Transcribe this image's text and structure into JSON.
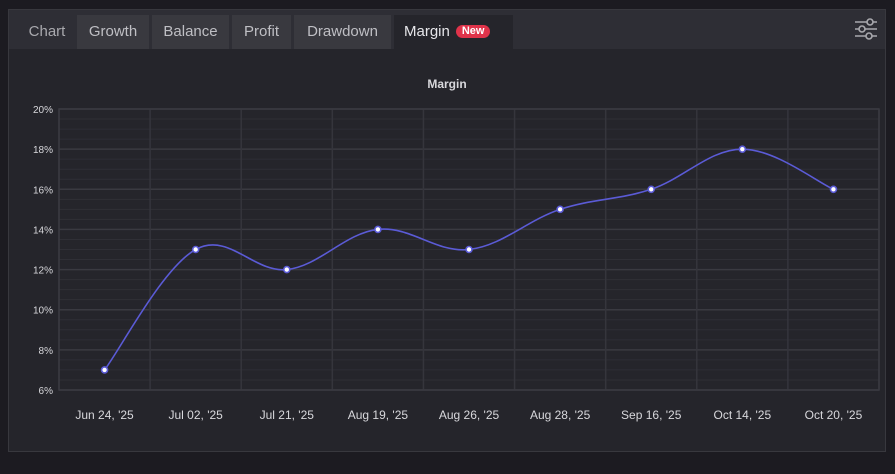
{
  "tabs": [
    {
      "label": "Chart"
    },
    {
      "label": "Growth"
    },
    {
      "label": "Balance"
    },
    {
      "label": "Profit"
    },
    {
      "label": "Drawdown"
    },
    {
      "label": "Margin",
      "badge": "New",
      "active": true
    }
  ],
  "toolbar": {
    "settings_icon": "sliders-icon"
  },
  "colors": {
    "line": "#5b5bd6",
    "badge": "#e0334a",
    "background": "#25252b",
    "grid": "#38383e"
  },
  "chart_data": {
    "type": "line",
    "title": "Margin",
    "xlabel": "",
    "ylabel": "",
    "categories": [
      "Jun 24, '25",
      "Jul 02, '25",
      "Jul 21, '25",
      "Aug 19, '25",
      "Aug 26, '25",
      "Aug 28, '25",
      "Sep 16, '25",
      "Oct 14, '25",
      "Oct 20, '25"
    ],
    "series": [
      {
        "name": "Margin",
        "values": [
          7,
          13,
          12,
          14,
          13,
          15,
          16,
          18,
          16
        ]
      }
    ],
    "y_ticks": [
      "6%",
      "8%",
      "10%",
      "12%",
      "14%",
      "16%",
      "18%",
      "20%"
    ],
    "ylim": [
      6,
      20
    ],
    "grid": true,
    "legend": "none",
    "smooth": true
  }
}
